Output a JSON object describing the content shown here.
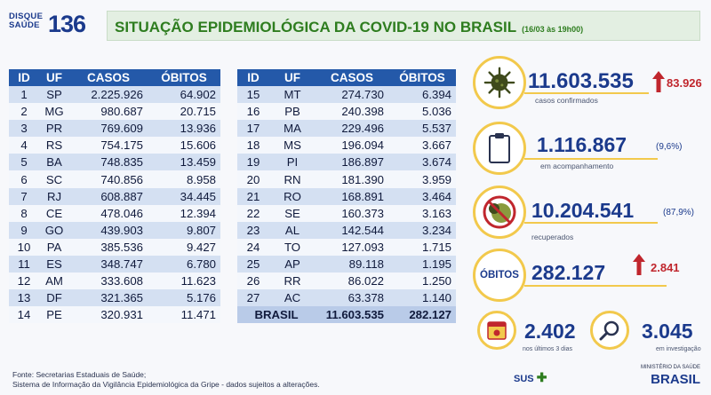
{
  "brand": {
    "label_line1": "DISQUE",
    "label_line2": "SAÚDE",
    "number": "136"
  },
  "header": {
    "title": "SITUAÇÃO EPIDEMIOLÓGICA DA COVID-19 NO BRASIL",
    "date": "(16/03 às 19h00)"
  },
  "table": {
    "columns": [
      "ID",
      "UF",
      "CASOS",
      "ÓBITOS"
    ],
    "left": [
      [
        "1",
        "SP",
        "2.225.926",
        "64.902"
      ],
      [
        "2",
        "MG",
        "980.687",
        "20.715"
      ],
      [
        "3",
        "PR",
        "769.609",
        "13.936"
      ],
      [
        "4",
        "RS",
        "754.175",
        "15.606"
      ],
      [
        "5",
        "BA",
        "748.835",
        "13.459"
      ],
      [
        "6",
        "SC",
        "740.856",
        "8.958"
      ],
      [
        "7",
        "RJ",
        "608.887",
        "34.445"
      ],
      [
        "8",
        "CE",
        "478.046",
        "12.394"
      ],
      [
        "9",
        "GO",
        "439.903",
        "9.807"
      ],
      [
        "10",
        "PA",
        "385.536",
        "9.427"
      ],
      [
        "11",
        "ES",
        "348.747",
        "6.780"
      ],
      [
        "12",
        "AM",
        "333.608",
        "11.623"
      ],
      [
        "13",
        "DF",
        "321.365",
        "5.176"
      ],
      [
        "14",
        "PE",
        "320.931",
        "11.471"
      ]
    ],
    "right": [
      [
        "15",
        "MT",
        "274.730",
        "6.394"
      ],
      [
        "16",
        "PB",
        "240.398",
        "5.036"
      ],
      [
        "17",
        "MA",
        "229.496",
        "5.537"
      ],
      [
        "18",
        "MS",
        "196.094",
        "3.667"
      ],
      [
        "19",
        "PI",
        "186.897",
        "3.674"
      ],
      [
        "20",
        "RN",
        "181.390",
        "3.959"
      ],
      [
        "21",
        "RO",
        "168.891",
        "3.464"
      ],
      [
        "22",
        "SE",
        "160.373",
        "3.163"
      ],
      [
        "23",
        "AL",
        "142.544",
        "3.234"
      ],
      [
        "24",
        "TO",
        "127.093",
        "1.715"
      ],
      [
        "25",
        "AP",
        "89.118",
        "1.195"
      ],
      [
        "26",
        "RR",
        "86.022",
        "1.250"
      ],
      [
        "27",
        "AC",
        "63.378",
        "1.140"
      ]
    ],
    "total": {
      "label": "BRASIL",
      "cases": "11.603.535",
      "deaths": "282.127"
    }
  },
  "stats": {
    "confirmed": {
      "value": "11.603.535",
      "delta": "83.926",
      "label": "casos confirmados",
      "icon": "virus-icon"
    },
    "monitoring": {
      "value": "1.116.867",
      "pct": "(9,6%)",
      "label": "em acompanhamento",
      "icon": "clipboard-icon"
    },
    "recovered": {
      "value": "10.204.541",
      "pct": "(87,9%)",
      "label": "recuperados",
      "icon": "crossed-virus-icon"
    },
    "deaths": {
      "badge": "ÓBITOS",
      "value": "282.127",
      "delta": "2.841"
    },
    "last3days": {
      "value": "2.402",
      "label": "nos últimos 3 dias",
      "icon": "calendar-icon"
    },
    "investigation": {
      "value": "3.045",
      "label": "em investigação",
      "icon": "magnifier-icon"
    }
  },
  "footer": {
    "line1": "Fonte: Secretarias Estaduais de Saúde;",
    "line2": "Sistema de Informação da Vigilância Epidemiológica da Gripe - dados sujeitos a alterações."
  },
  "logos": {
    "sus": "SUS",
    "ministry": "MINISTÉRIO DA SAÚDE",
    "country": "BRASIL"
  },
  "colors": {
    "header_blue": "#2459a9",
    "title_green": "#2e7d1f",
    "accent_yellow": "#f2c94c",
    "up_red": "#c0262d"
  }
}
